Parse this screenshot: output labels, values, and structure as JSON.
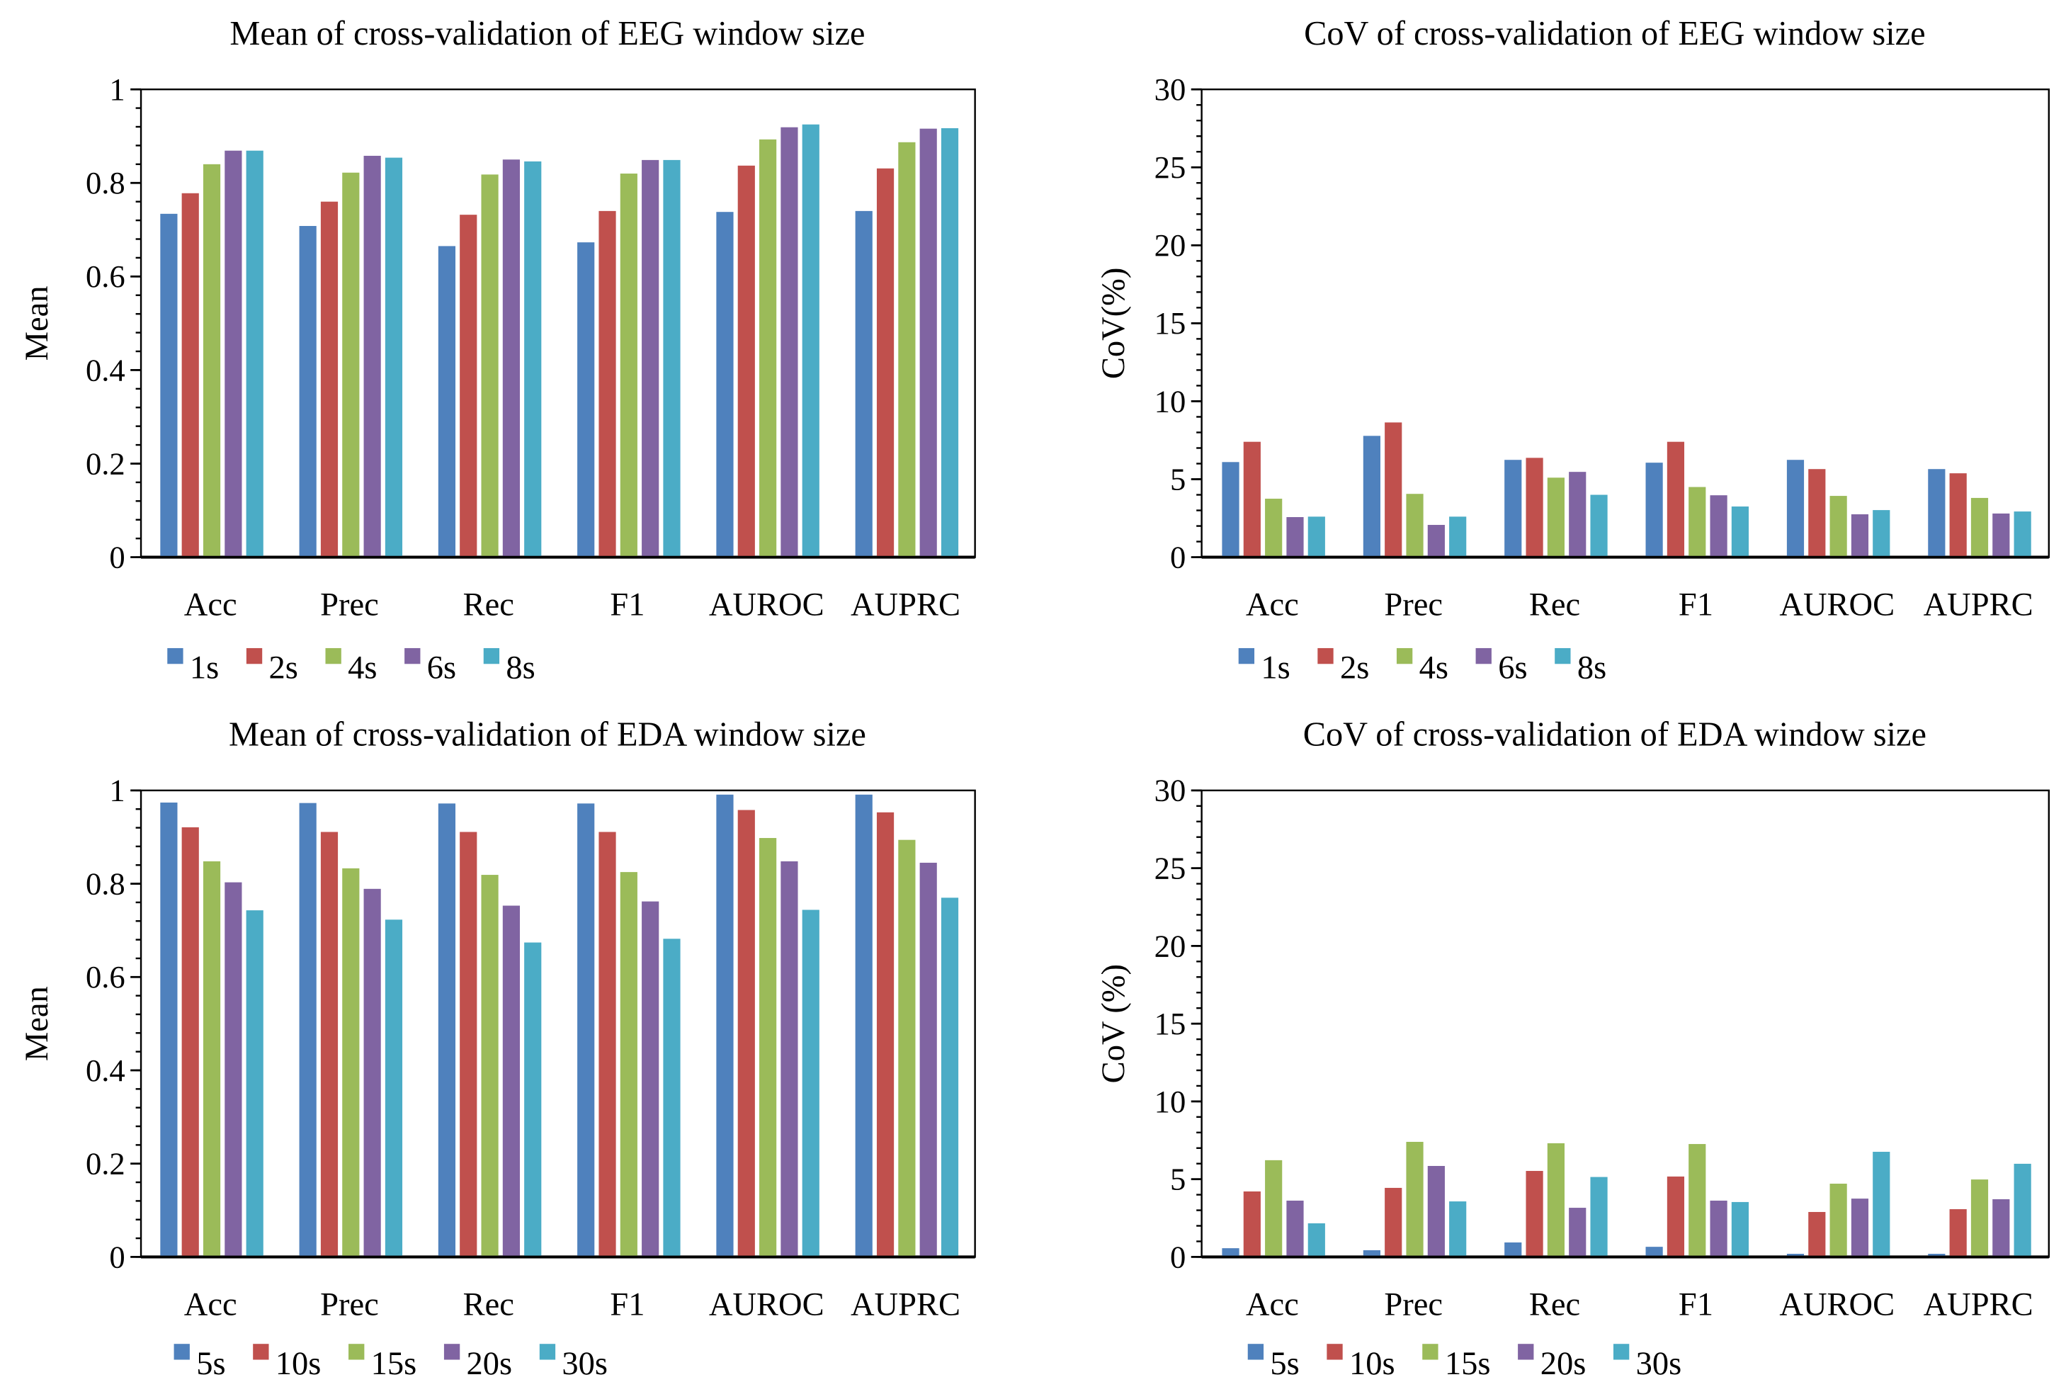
{
  "colors": [
    "#4f81bd",
    "#c0504d",
    "#9bbb59",
    "#8064a2",
    "#4bacc6"
  ],
  "chart_data": [
    {
      "type": "bar",
      "title": "Mean of cross-validation of EEG window size",
      "xlabel": "",
      "ylabel": "Mean",
      "ylim": [
        0,
        1
      ],
      "yticks": [
        0,
        0.2,
        0.4,
        0.6,
        0.8,
        1
      ],
      "yticklabels": [
        "0",
        "0.2",
        "0.4",
        "0.6",
        "0.8",
        "1"
      ],
      "minor_step": 0.04,
      "grid": false,
      "legend_position": "bottom-left",
      "categories": [
        "Acc",
        "Prec",
        "Rec",
        "F1",
        "AUROC",
        "AUPRC"
      ],
      "series": [
        {
          "name": "1s",
          "values": [
            0.734,
            0.708,
            0.665,
            0.673,
            0.738,
            0.74
          ]
        },
        {
          "name": "2s",
          "values": [
            0.778,
            0.76,
            0.732,
            0.74,
            0.837,
            0.831
          ]
        },
        {
          "name": "4s",
          "values": [
            0.84,
            0.822,
            0.818,
            0.82,
            0.893,
            0.887
          ]
        },
        {
          "name": "6s",
          "values": [
            0.869,
            0.858,
            0.85,
            0.849,
            0.919,
            0.916
          ]
        },
        {
          "name": "8s",
          "values": [
            0.869,
            0.854,
            0.846,
            0.849,
            0.925,
            0.917
          ]
        }
      ]
    },
    {
      "type": "bar",
      "title": "CoV of cross-validation of EEG window size",
      "xlabel": "",
      "ylabel": "CoV(%)",
      "ylim": [
        0,
        30
      ],
      "yticks": [
        0,
        5,
        10,
        15,
        20,
        25,
        30
      ],
      "yticklabels": [
        "0",
        "5",
        "10",
        "15",
        "20",
        "25",
        "30"
      ],
      "minor_step": 1,
      "grid": false,
      "legend_position": "bottom-left",
      "categories": [
        "Acc",
        "Prec",
        "Rec",
        "F1",
        "AUROC",
        "AUPRC"
      ],
      "series": [
        {
          "name": "1s",
          "values": [
            6.1,
            7.78,
            6.24,
            6.06,
            6.24,
            5.65
          ]
        },
        {
          "name": "2s",
          "values": [
            7.4,
            8.64,
            6.37,
            7.4,
            5.65,
            5.38
          ]
        },
        {
          "name": "4s",
          "values": [
            3.75,
            4.06,
            5.1,
            4.5,
            3.93,
            3.8
          ]
        },
        {
          "name": "6s",
          "values": [
            2.57,
            2.07,
            5.47,
            3.97,
            2.75,
            2.8
          ]
        },
        {
          "name": "8s",
          "values": [
            2.6,
            2.6,
            4.0,
            3.25,
            3.02,
            2.93
          ]
        }
      ]
    },
    {
      "type": "bar",
      "title": "Mean of cross-validation of EDA window size",
      "xlabel": "",
      "ylabel": "Mean",
      "ylim": [
        0,
        1
      ],
      "yticks": [
        0,
        0.2,
        0.4,
        0.6,
        0.8,
        1
      ],
      "yticklabels": [
        "0",
        "0.2",
        "0.4",
        "0.6",
        "0.8",
        "1"
      ],
      "minor_step": 0.04,
      "grid": false,
      "legend_position": "bottom-left",
      "categories": [
        "Acc",
        "Prec",
        "Rec",
        "F1",
        "AUROC",
        "AUPRC"
      ],
      "series": [
        {
          "name": "5s",
          "values": [
            0.974,
            0.973,
            0.972,
            0.972,
            0.991,
            0.991
          ]
        },
        {
          "name": "10s",
          "values": [
            0.921,
            0.911,
            0.911,
            0.911,
            0.958,
            0.953
          ]
        },
        {
          "name": "15s",
          "values": [
            0.848,
            0.833,
            0.819,
            0.825,
            0.898,
            0.894
          ]
        },
        {
          "name": "20s",
          "values": [
            0.803,
            0.789,
            0.753,
            0.762,
            0.848,
            0.845
          ]
        },
        {
          "name": "30s",
          "values": [
            0.743,
            0.723,
            0.674,
            0.682,
            0.744,
            0.77
          ]
        }
      ]
    },
    {
      "type": "bar",
      "title": "CoV of cross-validation of EDA window size",
      "xlabel": "",
      "ylabel": "CoV (%)",
      "ylim": [
        0,
        30
      ],
      "yticks": [
        0,
        5,
        10,
        15,
        20,
        25,
        30
      ],
      "yticklabels": [
        "0",
        "5",
        "10",
        "15",
        "20",
        "25",
        "30"
      ],
      "minor_step": 1,
      "grid": false,
      "legend_position": "bottom-left",
      "categories": [
        "Acc",
        "Prec",
        "Rec",
        "F1",
        "AUROC",
        "AUPRC"
      ],
      "series": [
        {
          "name": "5s",
          "values": [
            0.56,
            0.43,
            0.93,
            0.65,
            0.2,
            0.2
          ]
        },
        {
          "name": "10s",
          "values": [
            4.21,
            4.44,
            5.53,
            5.17,
            2.89,
            3.07
          ]
        },
        {
          "name": "15s",
          "values": [
            6.22,
            7.4,
            7.31,
            7.26,
            4.71,
            4.98
          ]
        },
        {
          "name": "20s",
          "values": [
            3.62,
            5.85,
            3.16,
            3.62,
            3.75,
            3.71
          ]
        },
        {
          "name": "30s",
          "values": [
            2.16,
            3.57,
            5.14,
            3.53,
            6.76,
            5.99
          ]
        }
      ]
    }
  ]
}
